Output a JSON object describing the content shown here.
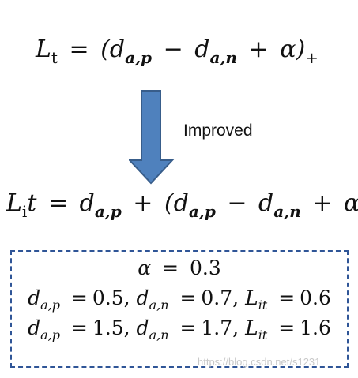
{
  "formula_1": {
    "lhs": "L",
    "lhs_sub": "t",
    "eq": "=",
    "open": "(d",
    "sub_ap": "a,p",
    "minus": "−",
    "d": "d",
    "sub_an": "a,n",
    "plus": "+",
    "alpha_close": "α)",
    "tail_sub": "+"
  },
  "arrow": {
    "label": "Improved",
    "color": "#4f81bd",
    "outline": "#385d8a"
  },
  "formula_2": {
    "lhs": "L",
    "lhs_sub": "i",
    "t": "t",
    "eq": "=",
    "d1": "d",
    "sub_ap1": "a,p",
    "plus1": "+",
    "open": "(d",
    "sub_ap2": "a,p",
    "minus": "−",
    "d2": "d",
    "sub_an": "a,n",
    "plus2": "+",
    "alpha_close": "α)",
    "tail_sub": "+"
  },
  "example_box": {
    "border_color": "#2f5597",
    "alpha_line": {
      "sym": "α",
      "eq": "=",
      "val": "0.3"
    },
    "line2": {
      "d1": "d",
      "sub1": "a,p",
      "eq1": "=",
      "v1": "0.5,",
      "d2": "d",
      "sub2": "a,n",
      "eq2": "=",
      "v2": "0.7,",
      "L": "L",
      "subL": "it",
      "eq3": "=",
      "v3": "0.6"
    },
    "line3": {
      "d1": "d",
      "sub1": "a,p",
      "eq1": "=",
      "v1": "1.5,",
      "d2": "d",
      "sub2": "a,n",
      "eq2": "=",
      "v2": "1.7,",
      "L": "L",
      "subL": "it",
      "eq3": "=",
      "v3": "1.6"
    }
  },
  "watermark": "https://blog.csdn.net/s1231"
}
